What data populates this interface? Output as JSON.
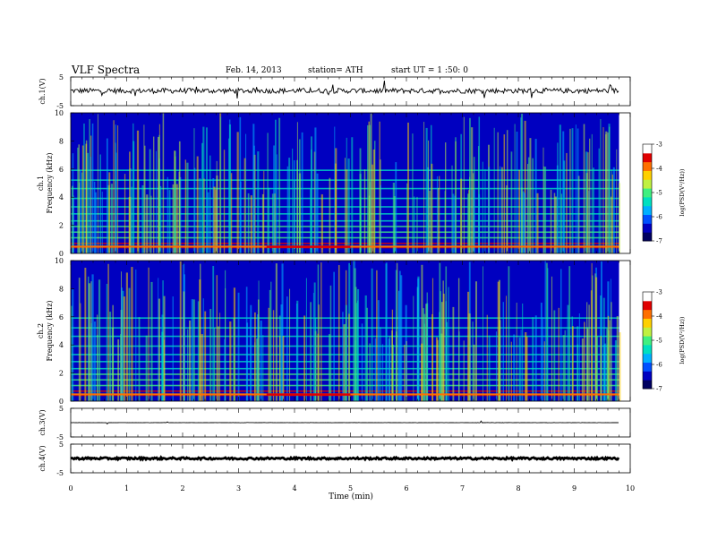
{
  "header": {
    "title": "VLF  Spectra",
    "date": "Feb. 14, 2013",
    "station": "station= ATH",
    "start": "start  UT  =   1  :50: 0"
  },
  "chart_data": {
    "type": "heatmap",
    "x_axis": {
      "label": "Time  (min)",
      "range": [
        0,
        10
      ],
      "ticks": [
        0,
        1,
        2,
        3,
        4,
        5,
        6,
        7,
        8,
        9,
        10
      ],
      "data_end": 9.8
    },
    "panels": [
      {
        "kind": "line",
        "ylabel": "ch.1(V)",
        "yrange": [
          -5,
          5
        ],
        "ticks": [
          "5",
          "-5"
        ],
        "baseline": 0.2,
        "noise": "medium"
      },
      {
        "kind": "spectrogram",
        "ylabel_channel": "ch.1",
        "ylabel_quantity": "Frequency  (kHz)",
        "yrange": [
          0,
          10
        ],
        "ticks": [
          "0",
          "2",
          "4",
          "6",
          "8",
          "10"
        ],
        "colorbar": {
          "label": "log(PSD(V²/Hz))",
          "ticks": [
            "-3",
            "-4",
            "-5",
            "-6",
            "-7"
          ],
          "range": [
            -7,
            -3
          ]
        },
        "notable": "stronger low-frequency (0.5 kHz) band and quieter 2-5 kHz region after 3.5 min"
      },
      {
        "kind": "spectrogram",
        "ylabel_channel": "ch.2",
        "ylabel_quantity": "Frequency  (kHz)",
        "yrange": [
          0,
          10
        ],
        "ticks": [
          "0",
          "2",
          "4",
          "6",
          "8",
          "10"
        ],
        "colorbar": {
          "label": "log(PSD(V²/Hz))",
          "ticks": [
            "-3",
            "-4",
            "-5",
            "-6",
            "-7"
          ],
          "range": [
            -7,
            -3
          ]
        },
        "notable": "similar broadband structure; change near 3.5 min"
      },
      {
        "kind": "line",
        "ylabel": "ch.3(V)",
        "yrange": [
          -5,
          5
        ],
        "ticks": [
          "5",
          "-5"
        ],
        "baseline": 0.0,
        "noise": "low"
      },
      {
        "kind": "line",
        "ylabel": "ch.4(V)",
        "yrange": [
          -5,
          5
        ],
        "ticks": [
          "5",
          "-5"
        ],
        "baseline": 0.0,
        "noise": "thick"
      }
    ],
    "colors": {
      "axes": "#000000",
      "trace": "#000000",
      "colormap": [
        "#000060",
        "#0000c0",
        "#0050ff",
        "#00b0ff",
        "#00e0c0",
        "#40f080",
        "#c0f040",
        "#ffd000",
        "#ff7000",
        "#e00000",
        "#ffffff"
      ]
    }
  }
}
